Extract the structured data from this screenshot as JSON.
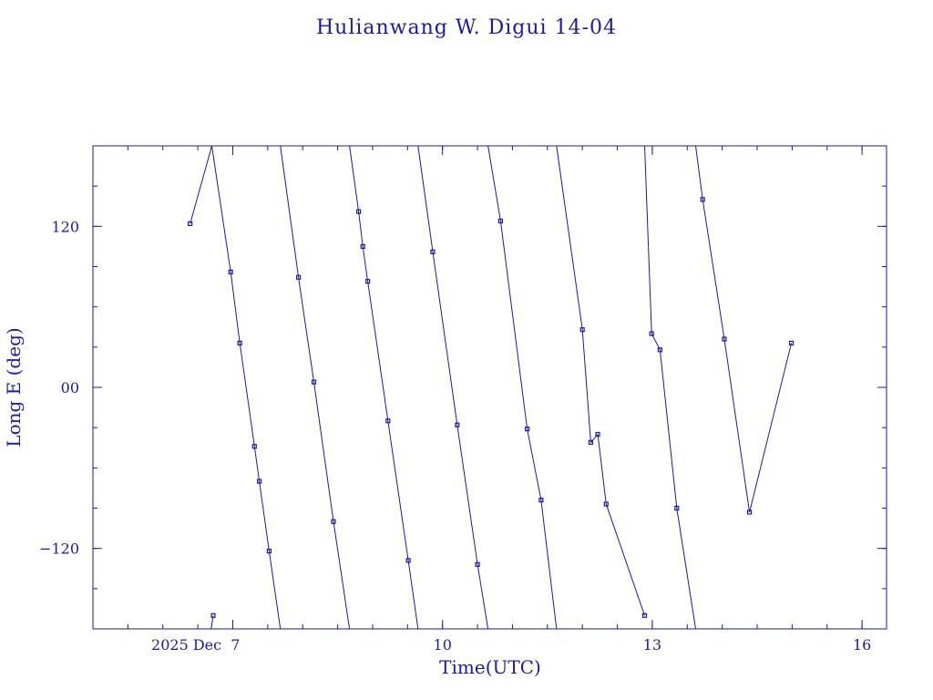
{
  "chart_data": {
    "type": "line",
    "title": "Hulianwang W. Digui 14-04",
    "xlabel": "Time(UTC)",
    "ylabel": "Long E (deg)",
    "xlim": [
      5.0,
      16.35
    ],
    "ylim": [
      -180,
      180
    ],
    "x_ticks_major": [
      {
        "value": 7,
        "label": "2025 Dec  7"
      },
      {
        "value": 10,
        "label": "10"
      },
      {
        "value": 13,
        "label": "13"
      },
      {
        "value": 16,
        "label": "16"
      }
    ],
    "x_ticks_minor_step": 0.5,
    "y_ticks_major": [
      {
        "value": -120,
        "label": "−120"
      },
      {
        "value": 0,
        "label": "00"
      },
      {
        "value": 120,
        "label": "120"
      }
    ],
    "y_ticks_minor_step": 30,
    "segments": [
      [
        [
          6.39,
          122
        ],
        [
          6.7,
          180
        ]
      ],
      [
        [
          6.7,
          180
        ],
        [
          6.97,
          86
        ],
        [
          7.1,
          33
        ],
        [
          7.31,
          -44
        ],
        [
          7.38,
          -70
        ],
        [
          7.52,
          -122
        ],
        [
          7.68,
          -180
        ]
      ],
      [
        [
          7.68,
          180
        ],
        [
          7.94,
          82
        ],
        [
          8.16,
          4
        ],
        [
          8.44,
          -100
        ],
        [
          8.67,
          -180
        ]
      ],
      [
        [
          8.67,
          180
        ],
        [
          8.8,
          131
        ],
        [
          8.86,
          105
        ],
        [
          8.93,
          79
        ],
        [
          9.22,
          -25
        ],
        [
          9.51,
          -129
        ],
        [
          9.65,
          -180
        ]
      ],
      [
        [
          9.65,
          180
        ],
        [
          9.86,
          101
        ],
        [
          10.21,
          -28
        ],
        [
          10.5,
          -132
        ],
        [
          10.65,
          -180
        ]
      ],
      [
        [
          10.65,
          180
        ],
        [
          10.83,
          124
        ],
        [
          11.21,
          -31
        ],
        [
          11.41,
          -84
        ],
        [
          11.63,
          -180
        ]
      ],
      [
        [
          11.63,
          180
        ],
        [
          12.0,
          43
        ],
        [
          12.12,
          -41
        ],
        [
          12.22,
          -35
        ],
        [
          12.34,
          -87
        ],
        [
          12.89,
          -170
        ]
      ],
      [
        [
          12.89,
          180
        ],
        [
          12.99,
          40
        ],
        [
          13.11,
          28
        ],
        [
          13.35,
          -90
        ],
        [
          13.62,
          -180
        ]
      ],
      [
        [
          13.62,
          180
        ],
        [
          13.72,
          140
        ],
        [
          14.03,
          36
        ],
        [
          14.39,
          -93
        ],
        [
          14.99,
          33
        ]
      ],
      [
        [
          6.72,
          -170
        ],
        [
          6.69,
          -180
        ]
      ]
    ]
  }
}
